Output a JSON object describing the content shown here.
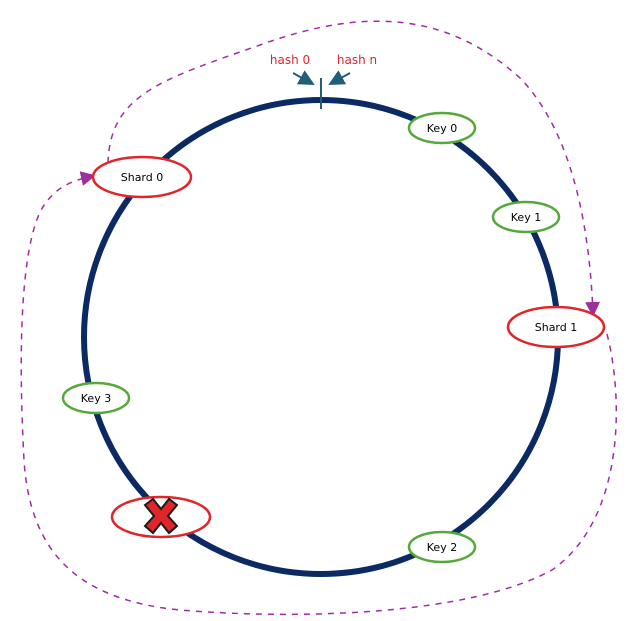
{
  "diagram": {
    "hash_labels": {
      "start": "hash 0",
      "end": "hash n"
    },
    "shards": [
      {
        "label": "Shard 0",
        "state": "active"
      },
      {
        "label": "Shard 1",
        "state": "active"
      },
      {
        "label": "",
        "state": "failed"
      }
    ],
    "keys": [
      {
        "label": "Key 0"
      },
      {
        "label": "Key 1"
      },
      {
        "label": "Key 2"
      },
      {
        "label": "Key 3"
      }
    ],
    "icons": {
      "failed_marker": "cross-icon"
    },
    "colors": {
      "ring": "#0b2a63",
      "hash_marker": "#1f5f7a",
      "hash_text": "#e0262b",
      "shard_border": "#e0262b",
      "key_border": "#55a83a",
      "migration_path": "#9b2f9e",
      "cross_fill": "#e0262b",
      "cross_stroke": "#1a1a1a"
    }
  }
}
